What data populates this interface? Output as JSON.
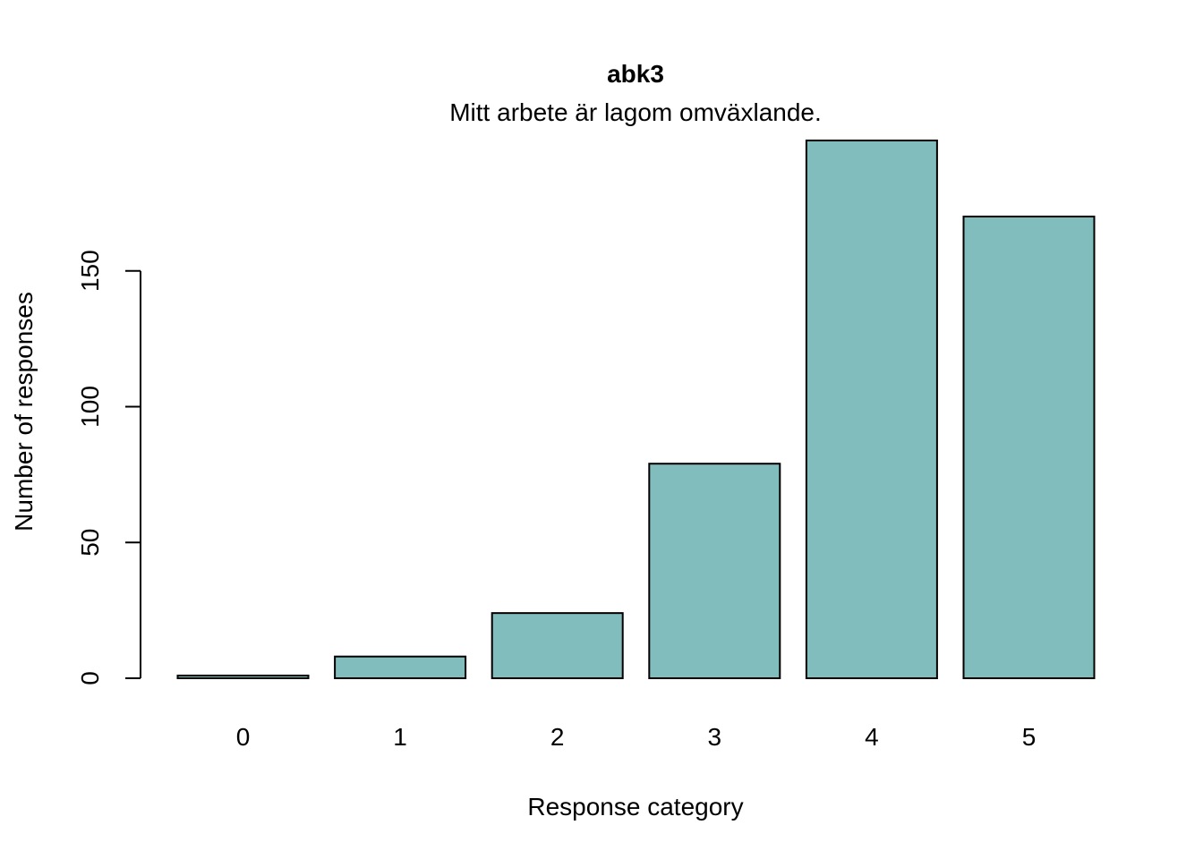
{
  "chart_data": {
    "type": "bar",
    "title": "abk3",
    "subtitle": "Mitt arbete är lagom omväxlande.",
    "xlabel": "Response category",
    "ylabel": "Number of responses",
    "categories": [
      "0",
      "1",
      "2",
      "3",
      "4",
      "5"
    ],
    "values": [
      1,
      8,
      24,
      79,
      198,
      170
    ],
    "ylim": [
      0,
      198
    ],
    "yticks": [
      0,
      50,
      100,
      150
    ],
    "bar_color": "#80BDBC",
    "grid": false,
    "legend": "none"
  }
}
